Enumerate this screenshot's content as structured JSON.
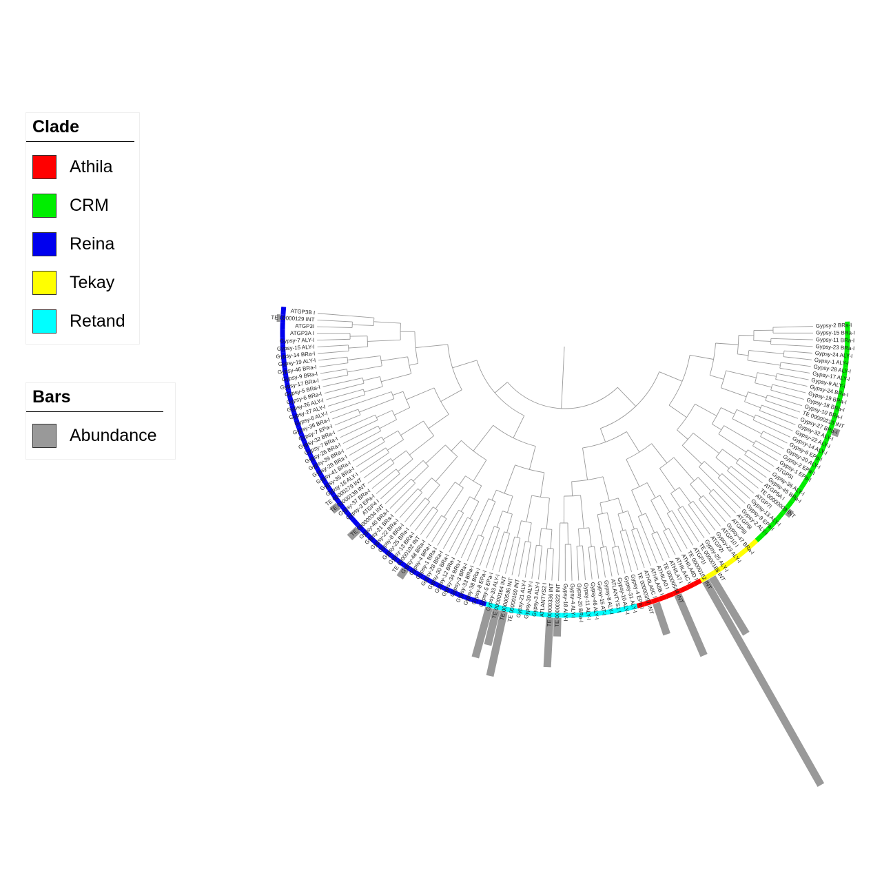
{
  "legend": {
    "clade_title": "Clade",
    "clades": [
      {
        "name": "Athila",
        "color": "#ff0000"
      },
      {
        "name": "CRM",
        "color": "#00ee00"
      },
      {
        "name": "Reina",
        "color": "#0000ee"
      },
      {
        "name": "Tekay",
        "color": "#ffff00"
      },
      {
        "name": "Retand",
        "color": "#00ffff"
      }
    ],
    "bars_title": "Bars",
    "bars": [
      {
        "name": "Abundance",
        "color": "#999999"
      }
    ]
  },
  "tree": {
    "leaves": [
      {
        "label": "Gypsy-2 BRa-I",
        "clade": "CRM",
        "abundance": 0
      },
      {
        "label": "Gypsy-15 BRa-I",
        "clade": "CRM",
        "abundance": 0
      },
      {
        "label": "Gypsy-11 BRa-I",
        "clade": "CRM",
        "abundance": 0
      },
      {
        "label": "Gypsy-23 BRa-I",
        "clade": "CRM",
        "abundance": 0
      },
      {
        "label": "Gypsy-24 ALY-I",
        "clade": "CRM",
        "abundance": 0
      },
      {
        "label": "Gypsy-1 ALY-I",
        "clade": "CRM",
        "abundance": 0
      },
      {
        "label": "Gypsy-28 ALY-I",
        "clade": "CRM",
        "abundance": 0
      },
      {
        "label": "Gypsy-17 ALY-I",
        "clade": "CRM",
        "abundance": 0
      },
      {
        "label": "Gypsy-9 ALY-I",
        "clade": "CRM",
        "abundance": 0
      },
      {
        "label": "Gypsy-24 BRa-I",
        "clade": "CRM",
        "abundance": 0
      },
      {
        "label": "Gypsy-19 BRa-I",
        "clade": "CRM",
        "abundance": 0
      },
      {
        "label": "Gypsy-18 BRa-I",
        "clade": "CRM",
        "abundance": 0
      },
      {
        "label": "Gypsy-10 BRa-I",
        "clade": "CRM",
        "abundance": 0
      },
      {
        "label": "TE 00000215 INT",
        "clade": "CRM",
        "abundance": 0
      },
      {
        "label": "Gypsy-27 BRa-I",
        "clade": "CRM",
        "abundance": 10
      },
      {
        "label": "Gypsy-32 ALY-I",
        "clade": "CRM",
        "abundance": 0
      },
      {
        "label": "Gypsy-22 ALY-I",
        "clade": "CRM",
        "abundance": 0
      },
      {
        "label": "Gypsy-14 ALY-I",
        "clade": "CRM",
        "abundance": 0
      },
      {
        "label": "Gypsy-6 EPa-I",
        "clade": "CRM",
        "abundance": 0
      },
      {
        "label": "Gypsy-20 ALY-I",
        "clade": "CRM",
        "abundance": 0
      },
      {
        "label": "Gypsy-2 EPa-I",
        "clade": "CRM",
        "abundance": 0
      },
      {
        "label": "Gypsy-1 EPa-I",
        "clade": "CRM",
        "abundance": 0
      },
      {
        "label": "ATGP5I",
        "clade": "CRM",
        "abundance": 0
      },
      {
        "label": "Gypsy-36 ALY-I",
        "clade": "CRM",
        "abundance": 0
      },
      {
        "label": "Gypsy-45 BRa-I",
        "clade": "CRM",
        "abundance": 0
      },
      {
        "label": "ATGP5A I",
        "clade": "CRM",
        "abundance": 0
      },
      {
        "label": "TE 00000009 INT",
        "clade": "CRM",
        "abundance": 8
      },
      {
        "label": "ATGP7I",
        "clade": "CRM",
        "abundance": 0
      },
      {
        "label": "Gypsy-13 ALY-I",
        "clade": "CRM",
        "abundance": 0
      },
      {
        "label": "Gypsy-9 EPa-I",
        "clade": "CRM",
        "abundance": 0
      },
      {
        "label": "Gypsy-2 ALY-I",
        "clade": "CRM",
        "abundance": 0
      },
      {
        "label": "ATGP6I",
        "clade": "CRM",
        "abundance": 0
      },
      {
        "label": "ATGP8I",
        "clade": "Tekay",
        "abundance": 0
      },
      {
        "label": "Gypsy-47 BRa-I",
        "clade": "Tekay",
        "abundance": 0
      },
      {
        "label": "ATGP10 I",
        "clade": "Tekay",
        "abundance": 0
      },
      {
        "label": "Gypsy-23 ALY-I",
        "clade": "Tekay",
        "abundance": 0
      },
      {
        "label": "ATGP2I",
        "clade": "Tekay",
        "abundance": 0
      },
      {
        "label": "Gypsy-25 ALY-I",
        "clade": "Tekay",
        "abundance": 0
      },
      {
        "label": "TE 00000188 INT",
        "clade": "Tekay",
        "abundance": 0
      },
      {
        "label": "ATGP1I",
        "clade": "Tekay",
        "abundance": 100
      },
      {
        "label": "TE 00000162 INT",
        "clade": "Tekay",
        "abundance": 355
      },
      {
        "label": "ATHILA4D I",
        "clade": "Athila",
        "abundance": 0
      },
      {
        "label": "ATHILA4C I",
        "clade": "Athila",
        "abundance": 0
      },
      {
        "label": "ATHILA7 I",
        "clade": "Athila",
        "abundance": 0
      },
      {
        "label": "TE 00000544 INT",
        "clade": "Athila",
        "abundance": 100
      },
      {
        "label": "ATHILA0 I",
        "clade": "Athila",
        "abundance": 0
      },
      {
        "label": "ATHILA6B I",
        "clade": "Athila",
        "abundance": 0
      },
      {
        "label": "ATHILA6C I",
        "clade": "Athila",
        "abundance": 50
      },
      {
        "label": "TE 00000357 INT",
        "clade": "Athila",
        "abundance": 0
      },
      {
        "label": "Gypsy-4 EPa-I",
        "clade": "Athila",
        "abundance": 0
      },
      {
        "label": "Gypsy-31 ALY-I",
        "clade": "Retand",
        "abundance": 0
      },
      {
        "label": "Gypsy-10 ALY-I",
        "clade": "Retand",
        "abundance": 0
      },
      {
        "label": "ATLANTYS1 I",
        "clade": "Retand",
        "abundance": 0
      },
      {
        "label": "Gypsy-8 ALY-I",
        "clade": "Retand",
        "abundance": 0
      },
      {
        "label": "Gypsy-15 AT-I",
        "clade": "Retand",
        "abundance": 0
      },
      {
        "label": "Gypsy-46 ALY-I",
        "clade": "Retand",
        "abundance": 0
      },
      {
        "label": "Gypsy-11 ALY-I",
        "clade": "Retand",
        "abundance": 0
      },
      {
        "label": "Gypsy-20 BRa-I",
        "clade": "Retand",
        "abundance": 0
      },
      {
        "label": "Gypsy-4 ALY-I",
        "clade": "Retand",
        "abundance": 0
      },
      {
        "label": "Gypsy-18 ALY-I",
        "clade": "Retand",
        "abundance": 0
      },
      {
        "label": "TE 00000322 INT",
        "clade": "Retand",
        "abundance": 28
      },
      {
        "label": "TE 00000336 INT",
        "clade": "Retand",
        "abundance": 75
      },
      {
        "label": "ATLANTYS2 I",
        "clade": "Retand",
        "abundance": 0
      },
      {
        "label": "Gypsy-3 ALY-I",
        "clade": "Retand",
        "abundance": 0
      },
      {
        "label": "Gypsy-30 ALY-I",
        "clade": "Retand",
        "abundance": 0
      },
      {
        "label": "Gypsy-21 ALY-I",
        "clade": "Retand",
        "abundance": 0
      },
      {
        "label": "TE 00000160 INT",
        "clade": "Retand",
        "abundance": 0
      },
      {
        "label": "TE 00000536 INT",
        "clade": "Retand",
        "abundance": 100
      },
      {
        "label": "TE 00000164 INT",
        "clade": "Retand",
        "abundance": 55
      },
      {
        "label": "Gypsy-33 ALY-I",
        "clade": "Retand",
        "abundance": 78
      },
      {
        "label": "Gypsy-5 EPa-I",
        "clade": "Reina",
        "abundance": 0
      },
      {
        "label": "Gypsy-8 EPa-I",
        "clade": "Reina",
        "abundance": 0
      },
      {
        "label": "Gypsy-38 BRa-I",
        "clade": "Reina",
        "abundance": 0
      },
      {
        "label": "Gypsy-33 BRa-I",
        "clade": "Reina",
        "abundance": 0
      },
      {
        "label": "Gypsy-3 BRa-I",
        "clade": "Reina",
        "abundance": 0
      },
      {
        "label": "Gypsy-34 BRa-I",
        "clade": "Reina",
        "abundance": 0
      },
      {
        "label": "Gypsy-12 BRa-I",
        "clade": "Reina",
        "abundance": 0
      },
      {
        "label": "Gypsy-30 BRa-I",
        "clade": "Reina",
        "abundance": 0
      },
      {
        "label": "Gypsy-28 BRa-I",
        "clade": "Reina",
        "abundance": 0
      },
      {
        "label": "Gypsy-1 BRa-I",
        "clade": "Reina",
        "abundance": 0
      },
      {
        "label": "Gypsy-4 BRa-I",
        "clade": "Reina",
        "abundance": 0
      },
      {
        "label": "Gypsy-48 BRa-I",
        "clade": "Reina",
        "abundance": 15
      },
      {
        "label": "TE 00000102 INT",
        "clade": "Reina",
        "abundance": 0
      },
      {
        "label": "Gypsy-13 BRa-I",
        "clade": "Reina",
        "abundance": 0
      },
      {
        "label": "Gypsy-25 BRa-I",
        "clade": "Reina",
        "abundance": 0
      },
      {
        "label": "Gypsy-8 BRa-I",
        "clade": "Reina",
        "abundance": 0
      },
      {
        "label": "Gypsy-22 BRa-I",
        "clade": "Reina",
        "abundance": 0
      },
      {
        "label": "Gypsy-21 BRa-I",
        "clade": "Reina",
        "abundance": 0
      },
      {
        "label": "Gypsy-40 BRa-I",
        "clade": "Reina",
        "abundance": 0
      },
      {
        "label": "TE 00000034 INT",
        "clade": "Reina",
        "abundance": 18
      },
      {
        "label": "ATGP4 I",
        "clade": "Reina",
        "abundance": 0
      },
      {
        "label": "Gypsy-3 EPa-I",
        "clade": "Reina",
        "abundance": 0
      },
      {
        "label": "Gypsy-37 BRa-I",
        "clade": "Reina",
        "abundance": 0
      },
      {
        "label": "TE 00000139 INT",
        "clade": "Reina",
        "abundance": 12
      },
      {
        "label": "TE 00000279 INT",
        "clade": "Reina",
        "abundance": 0
      },
      {
        "label": "Gypsy-16 ALY-I",
        "clade": "Reina",
        "abundance": 0
      },
      {
        "label": "Gypsy-35 BRa-I",
        "clade": "Reina",
        "abundance": 0
      },
      {
        "label": "Gypsy-41 BRa-I",
        "clade": "Reina",
        "abundance": 0
      },
      {
        "label": "Gypsy-29 BRa-I",
        "clade": "Reina",
        "abundance": 0
      },
      {
        "label": "Gypsy-39 BRa-I",
        "clade": "Reina",
        "abundance": 0
      },
      {
        "label": "Gypsy-26 BRa-I",
        "clade": "Reina",
        "abundance": 0
      },
      {
        "label": "Gypsy-7 BRa-I",
        "clade": "Reina",
        "abundance": 0
      },
      {
        "label": "Gypsy-32 BRa-I",
        "clade": "Reina",
        "abundance": 0
      },
      {
        "label": "Gypsy-7 EPa-I",
        "clade": "Reina",
        "abundance": 0
      },
      {
        "label": "Gypsy-36 BRa-I",
        "clade": "Reina",
        "abundance": 0
      },
      {
        "label": "Gypsy-6 ALY-I",
        "clade": "Reina",
        "abundance": 0
      },
      {
        "label": "Gypsy-27 ALY-I",
        "clade": "Reina",
        "abundance": 0
      },
      {
        "label": "Gypsy-26 ALY-I",
        "clade": "Reina",
        "abundance": 0
      },
      {
        "label": "Gypsy-6 BRa-I",
        "clade": "Reina",
        "abundance": 0
      },
      {
        "label": "Gypsy-5 BRa-I",
        "clade": "Reina",
        "abundance": 0
      },
      {
        "label": "Gypsy-17 BRa-I",
        "clade": "Reina",
        "abundance": 0
      },
      {
        "label": "Gypsy-9 BRa-I",
        "clade": "Reina",
        "abundance": 0
      },
      {
        "label": "Gypsy-46 BRa-I",
        "clade": "Reina",
        "abundance": 0
      },
      {
        "label": "Gypsy-19 ALY-I",
        "clade": "Reina",
        "abundance": 0
      },
      {
        "label": "Gypsy-14 BRa-I",
        "clade": "Reina",
        "abundance": 0
      },
      {
        "label": "Gypsy-15 ALY-I",
        "clade": "Reina",
        "abundance": 0
      },
      {
        "label": "Gypsy-7 ALY-I",
        "clade": "Reina",
        "abundance": 0
      },
      {
        "label": "ATGP3A I",
        "clade": "Reina",
        "abundance": 0
      },
      {
        "label": "ATGP3I",
        "clade": "Reina",
        "abundance": 0
      },
      {
        "label": "TE 00000129 INT",
        "clade": "Reina",
        "abundance": 5
      },
      {
        "label": "ATGP3B I",
        "clade": "Reina",
        "abundance": 0
      }
    ]
  }
}
